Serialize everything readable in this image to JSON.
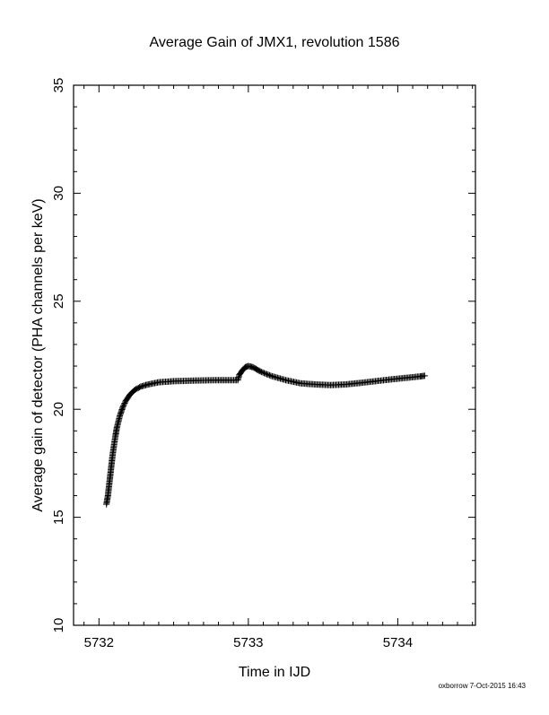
{
  "chart_data": {
    "type": "scatter",
    "title": "Average Gain of JMX1, revolution 1586",
    "xlabel": "Time in IJD",
    "ylabel": "Average gain of detector (PHA channels per keV)",
    "xlim": [
      5731.83,
      5734.52
    ],
    "ylim": [
      10,
      35
    ],
    "x_ticks": [
      5732,
      5733,
      5734
    ],
    "y_ticks": [
      10,
      15,
      20,
      25,
      30,
      35
    ],
    "marker": "plus",
    "marker_color": "#000000",
    "grid": false,
    "series": [
      {
        "points": [
          [
            5732.05,
            15.6
          ],
          [
            5732.06,
            16.0
          ],
          [
            5732.07,
            16.6
          ],
          [
            5732.08,
            17.2
          ],
          [
            5732.09,
            17.8
          ],
          [
            5732.1,
            18.3
          ],
          [
            5732.11,
            18.75
          ],
          [
            5732.12,
            19.15
          ],
          [
            5732.14,
            19.7
          ],
          [
            5732.16,
            20.1
          ],
          [
            5732.18,
            20.4
          ],
          [
            5732.21,
            20.7
          ],
          [
            5732.24,
            20.9
          ],
          [
            5732.28,
            21.05
          ],
          [
            5732.33,
            21.15
          ],
          [
            5732.4,
            21.25
          ],
          [
            5732.5,
            21.3
          ],
          [
            5732.65,
            21.33
          ],
          [
            5732.8,
            21.35
          ],
          [
            5732.93,
            21.35
          ],
          [
            5732.94,
            21.6
          ],
          [
            5732.96,
            21.8
          ],
          [
            5732.98,
            21.95
          ],
          [
            5733.0,
            22.0
          ],
          [
            5733.03,
            21.95
          ],
          [
            5733.08,
            21.75
          ],
          [
            5733.15,
            21.55
          ],
          [
            5733.25,
            21.35
          ],
          [
            5733.35,
            21.2
          ],
          [
            5733.45,
            21.15
          ],
          [
            5733.55,
            21.12
          ],
          [
            5733.65,
            21.15
          ],
          [
            5733.75,
            21.22
          ],
          [
            5733.85,
            21.3
          ],
          [
            5733.95,
            21.38
          ],
          [
            5734.05,
            21.45
          ],
          [
            5734.15,
            21.52
          ],
          [
            5734.18,
            21.55
          ]
        ]
      }
    ]
  },
  "footer": {
    "credit": "oxborrow  7-Oct-2015 16:43"
  }
}
